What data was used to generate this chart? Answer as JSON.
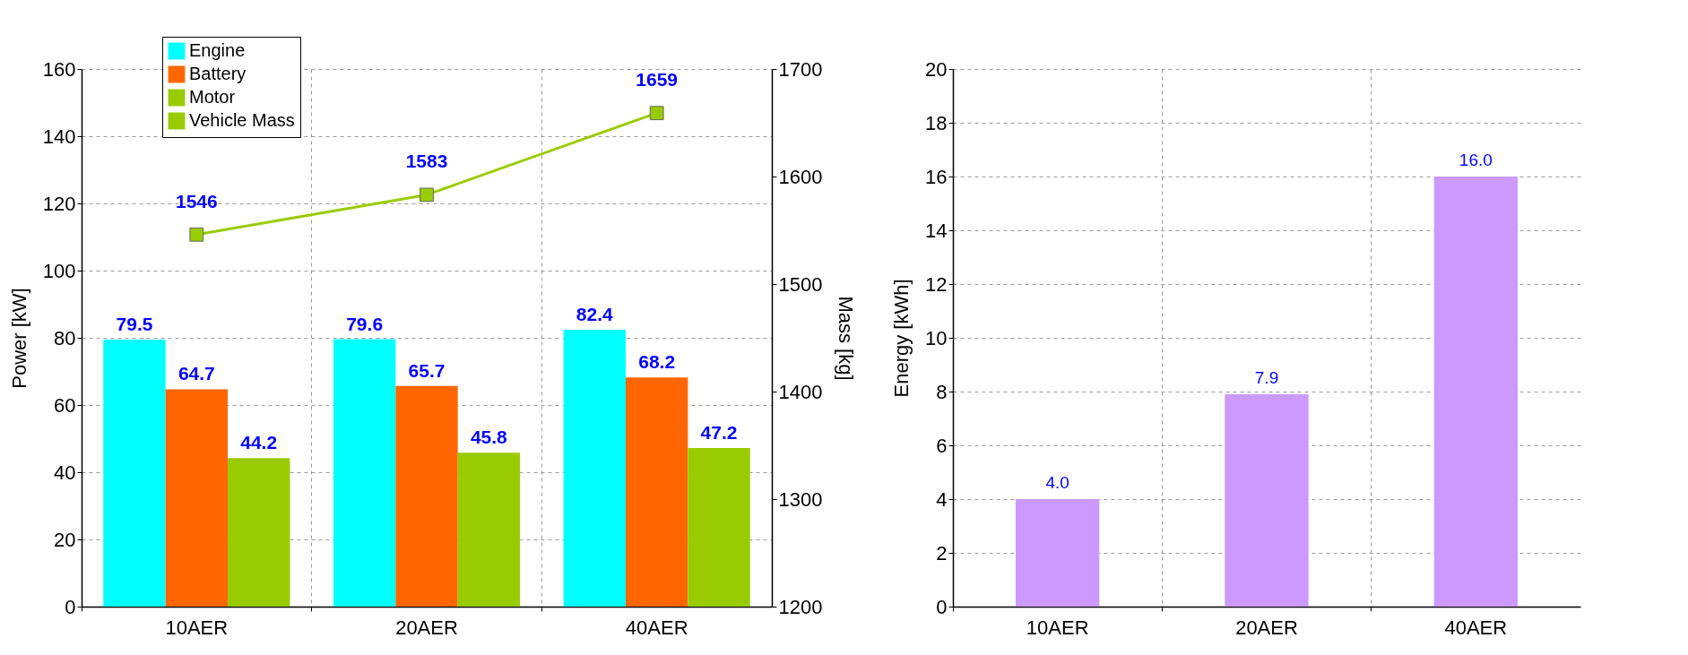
{
  "chart_data": [
    {
      "type": "bar",
      "categories": [
        "10AER",
        "20AER",
        "40AER"
      ],
      "ylabel": "Power [kW]",
      "y2label": "Mass [kg]",
      "ylim": [
        0,
        160
      ],
      "yticks": [
        0,
        20,
        40,
        60,
        80,
        100,
        120,
        140,
        160
      ],
      "y2lim": [
        1200,
        1700
      ],
      "y2ticks": [
        1200,
        1300,
        1400,
        1500,
        1600,
        1700
      ],
      "grid": true,
      "legend": "top left",
      "data_labels": true,
      "series": [
        {
          "name": "Engine",
          "color": "#00ffff",
          "values": [
            79.5,
            79.6,
            82.4
          ]
        },
        {
          "name": "Battery",
          "color": "#ff6600",
          "values": [
            64.7,
            65.7,
            68.2
          ]
        },
        {
          "name": "Motor",
          "color": "#99cc00",
          "values": [
            44.2,
            45.8,
            47.2
          ]
        },
        {
          "name": "Vehicle Mass",
          "type": "line",
          "axis": "y2",
          "marker": "square",
          "color": "#99cc00",
          "values": [
            1546,
            1583,
            1659
          ]
        }
      ]
    },
    {
      "type": "bar",
      "categories": [
        "10AER",
        "20AER",
        "40AER"
      ],
      "ylabel": "Energy [kWh]",
      "ylim": [
        0,
        20
      ],
      "yticks": [
        0,
        2,
        4,
        6,
        8,
        10,
        12,
        14,
        16,
        18,
        20
      ],
      "grid": true,
      "color": "#cc99ff",
      "values": [
        4.0,
        7.9,
        16.0
      ],
      "value_labels": [
        "4.0",
        "7.9",
        "16.0"
      ]
    }
  ]
}
